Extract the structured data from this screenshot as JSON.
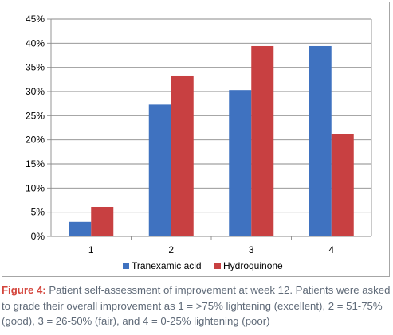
{
  "chart_data": {
    "type": "bar",
    "categories": [
      "1",
      "2",
      "3",
      "4"
    ],
    "series": [
      {
        "name": "Tranexamic acid",
        "color": "#3f72c0",
        "values": [
          3.0,
          27.3,
          30.3,
          39.4
        ]
      },
      {
        "name": "Hydroquinone",
        "color": "#c84041",
        "values": [
          6.1,
          33.3,
          39.4,
          21.2
        ]
      }
    ],
    "ylim": [
      0,
      45
    ],
    "ytick_step": 5,
    "ytick_format": "percent",
    "grid": true,
    "legend": "bottom-center"
  },
  "caption": {
    "label": "Figure 4:",
    "text": " Patient self-assessment of improvement at week 12. Patients were asked to grade their overall improvement as 1 = >75% lightening (excellent), 2 = 51-75% (good), 3 = 26-50% (fair), and 4 = 0-25% lightening (poor)"
  }
}
